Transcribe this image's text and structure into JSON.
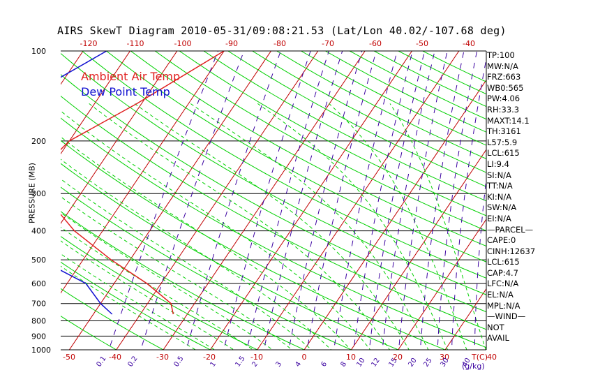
{
  "title": "AIRS SkewT Diagram 2010-05-31/09:08:21.53 (Lat/Lon 40.02/-107.68 deg)",
  "legend": {
    "temp": "Ambient Air Temp",
    "dew": "Dew Point Temp"
  },
  "ylabel": "PRESSURE (MB)",
  "colors": {
    "temp": "#e02020",
    "dew": "#1010d0",
    "isotherm": "#c00000",
    "adiabat": "#00d000",
    "mixing": "#3a00a0",
    "axis_top": "#c00000",
    "axis_bottom": "#c00000"
  },
  "stats": [
    "TP:100",
    "MW:N/A",
    "FRZ:663",
    "WB0:565",
    "PW:4.06",
    "RH:33.3",
    "MAXT:14.1",
    "TH:3161",
    "L57:5.9",
    "LCL:615",
    "LI:9.4",
    "SI:N/A",
    "TT:N/A",
    "KI:N/A",
    "SW:N/A",
    "EI:N/A",
    "—PARCEL—",
    "CAPE:0",
    "CINH:12637",
    "LCL:615",
    "CAP:4.7",
    "LFC:N/A",
    "EL:N/A",
    "MPL:N/A",
    "—WIND—",
    "NOT",
    "AVAIL"
  ],
  "chart_data": {
    "type": "line",
    "title": "AIRS SkewT Diagram 2010-05-31/09:08:21.53 (Lat/Lon 40.02/-107.68 deg)",
    "ylabel": "PRESSURE (MB)",
    "xlabel": "T(C)",
    "y_scale": "log",
    "ylim": [
      1000,
      100
    ],
    "pressure_ticks": [
      100,
      200,
      300,
      400,
      500,
      600,
      700,
      800,
      900,
      1000
    ],
    "bottom_temp_ticks": [
      -50,
      -40,
      -30,
      -20,
      -10,
      0,
      10,
      20,
      30,
      40
    ],
    "top_temp_ticks": [
      -120,
      -110,
      -100,
      -90,
      -80,
      -70,
      -60,
      -50,
      -40
    ],
    "mixing_ratio_ticks": [
      "0.1",
      "0.2",
      "0.5",
      "1",
      "1.5",
      "2",
      "3",
      "4",
      "6",
      "8",
      "10",
      "12",
      "15",
      "20",
      "25",
      "30",
      "40"
    ],
    "mixing_ratio_unit": "g/kg",
    "series": [
      {
        "name": "Ambient Air Temp",
        "pressure": [
          100,
          150,
          200,
          250,
          300,
          400,
          500,
          600,
          700,
          760
        ],
        "temp": [
          -60,
          -71,
          -80,
          -82,
          -78,
          -66,
          -54,
          -43,
          -35,
          -33
        ]
      },
      {
        "name": "Dew Point Temp",
        "pressure": [
          100,
          150,
          200,
          250,
          300,
          400,
          500,
          600,
          700,
          760
        ],
        "temp": [
          -85,
          -97,
          -99,
          -97,
          -91,
          -79,
          -69,
          -56,
          -50,
          -46
        ]
      }
    ]
  }
}
